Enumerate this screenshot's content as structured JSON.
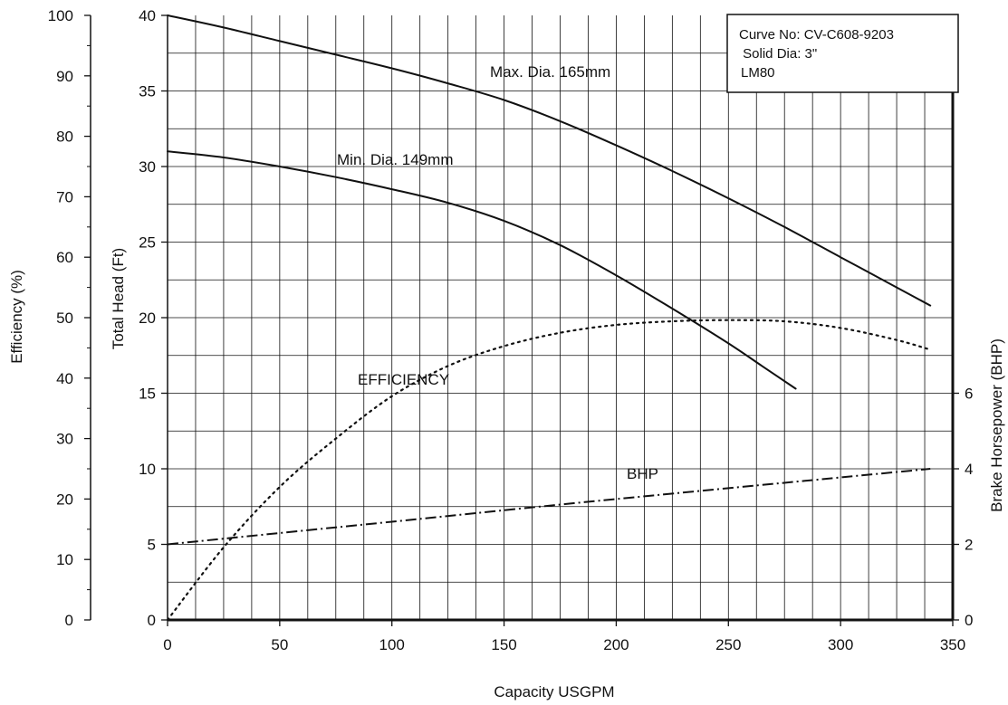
{
  "chart_data": {
    "type": "line",
    "xlabel": "Capacity USGPM",
    "x_ticks": [
      "0",
      "50",
      "100",
      "150",
      "200",
      "250",
      "300",
      "350"
    ],
    "xlim": [
      0,
      350
    ],
    "ylabel_head": "Total Head (Ft)",
    "head_ticks": [
      "0",
      "5",
      "10",
      "15",
      "20",
      "25",
      "30",
      "35",
      "40"
    ],
    "head_lim": [
      0,
      40
    ],
    "ylabel_efficiency": "Efficiency (%)",
    "efficiency_ticks": [
      "0",
      "10",
      "20",
      "30",
      "40",
      "50",
      "60",
      "70",
      "80",
      "90",
      "100"
    ],
    "efficiency_lim": [
      0,
      100
    ],
    "ylabel_bhp": "Brake Horsepower (BHP)",
    "bhp_ticks": [
      "0",
      "2",
      "4",
      "6"
    ],
    "bhp_lim": [
      0,
      16
    ],
    "grid": true,
    "info_box": {
      "line1": "Curve No: CV-C608-9203",
      "line2": " Solid Dia: 3\"",
      "line3": "LM80"
    },
    "series": [
      {
        "name": "Max. Dia. 165mm",
        "axis": "head",
        "style": "solid",
        "points": [
          [
            0,
            40
          ],
          [
            25,
            39.2
          ],
          [
            50,
            38.3
          ],
          [
            75,
            37.4
          ],
          [
            100,
            36.5
          ],
          [
            125,
            35.5
          ],
          [
            150,
            34.4
          ],
          [
            175,
            33
          ],
          [
            200,
            31.4
          ],
          [
            225,
            29.7
          ],
          [
            250,
            27.9
          ],
          [
            275,
            26
          ],
          [
            300,
            24
          ],
          [
            325,
            22
          ],
          [
            340,
            20.8
          ]
        ]
      },
      {
        "name": "Min. Dia. 149mm",
        "axis": "head",
        "style": "solid",
        "points": [
          [
            0,
            31
          ],
          [
            25,
            30.6
          ],
          [
            50,
            30
          ],
          [
            75,
            29.3
          ],
          [
            100,
            28.5
          ],
          [
            125,
            27.6
          ],
          [
            150,
            26.4
          ],
          [
            175,
            24.8
          ],
          [
            200,
            22.8
          ],
          [
            225,
            20.6
          ],
          [
            250,
            18.3
          ],
          [
            265,
            16.8
          ],
          [
            280,
            15.3
          ]
        ]
      },
      {
        "name": "EFFICIENCY",
        "axis": "efficiency",
        "style": "dotted",
        "points": [
          [
            0,
            0
          ],
          [
            25,
            12
          ],
          [
            50,
            22
          ],
          [
            75,
            30
          ],
          [
            100,
            37
          ],
          [
            125,
            42
          ],
          [
            150,
            45.3
          ],
          [
            175,
            47.5
          ],
          [
            200,
            48.8
          ],
          [
            225,
            49.4
          ],
          [
            250,
            49.6
          ],
          [
            275,
            49.4
          ],
          [
            300,
            48.3
          ],
          [
            325,
            46.3
          ],
          [
            340,
            44.7
          ]
        ]
      },
      {
        "name": "BHP",
        "axis": "bhp",
        "style": "dashdot",
        "points": [
          [
            0,
            2
          ],
          [
            100,
            2.6
          ],
          [
            200,
            3.2
          ],
          [
            340,
            4
          ]
        ]
      }
    ]
  }
}
